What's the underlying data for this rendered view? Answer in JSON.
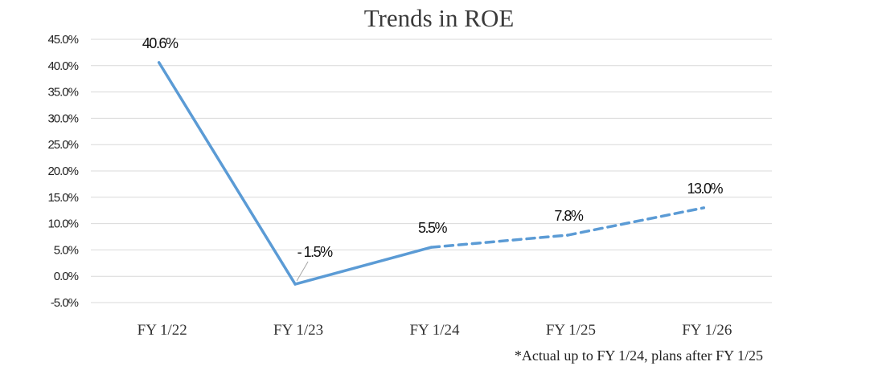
{
  "chart_data": {
    "type": "line",
    "title": "Trends in ROE",
    "categories": [
      "FY 1/22",
      "FY 1/23",
      "FY 1/24",
      "FY 1/25",
      "FY 1/26"
    ],
    "values": [
      40.6,
      -1.5,
      5.5,
      7.8,
      13.0
    ],
    "data_labels": [
      "40.6%",
      "- 1.5%",
      "5.5%",
      "7.8%",
      "13.0%"
    ],
    "actual_through_index": 2,
    "ylim": [
      -5,
      45
    ],
    "yticks": [
      45,
      40,
      35,
      30,
      25,
      20,
      15,
      10,
      5,
      0,
      -5
    ],
    "ytick_labels": [
      "45.0%",
      "40.0%",
      "35.0%",
      "30.0%",
      "25.0%",
      "20.0%",
      "15.0%",
      "10.0%",
      "5.0%",
      "0.0%",
      "-5.0%"
    ],
    "grid": true,
    "legend": "none",
    "footnote": "*Actual up to FY 1/24, plans after FY 1/25",
    "colors": {
      "line": "#5b9bd5",
      "negative_label": "#ff0000",
      "grid": "#d9d9d9",
      "leader_line": "#a6a6a6"
    }
  }
}
